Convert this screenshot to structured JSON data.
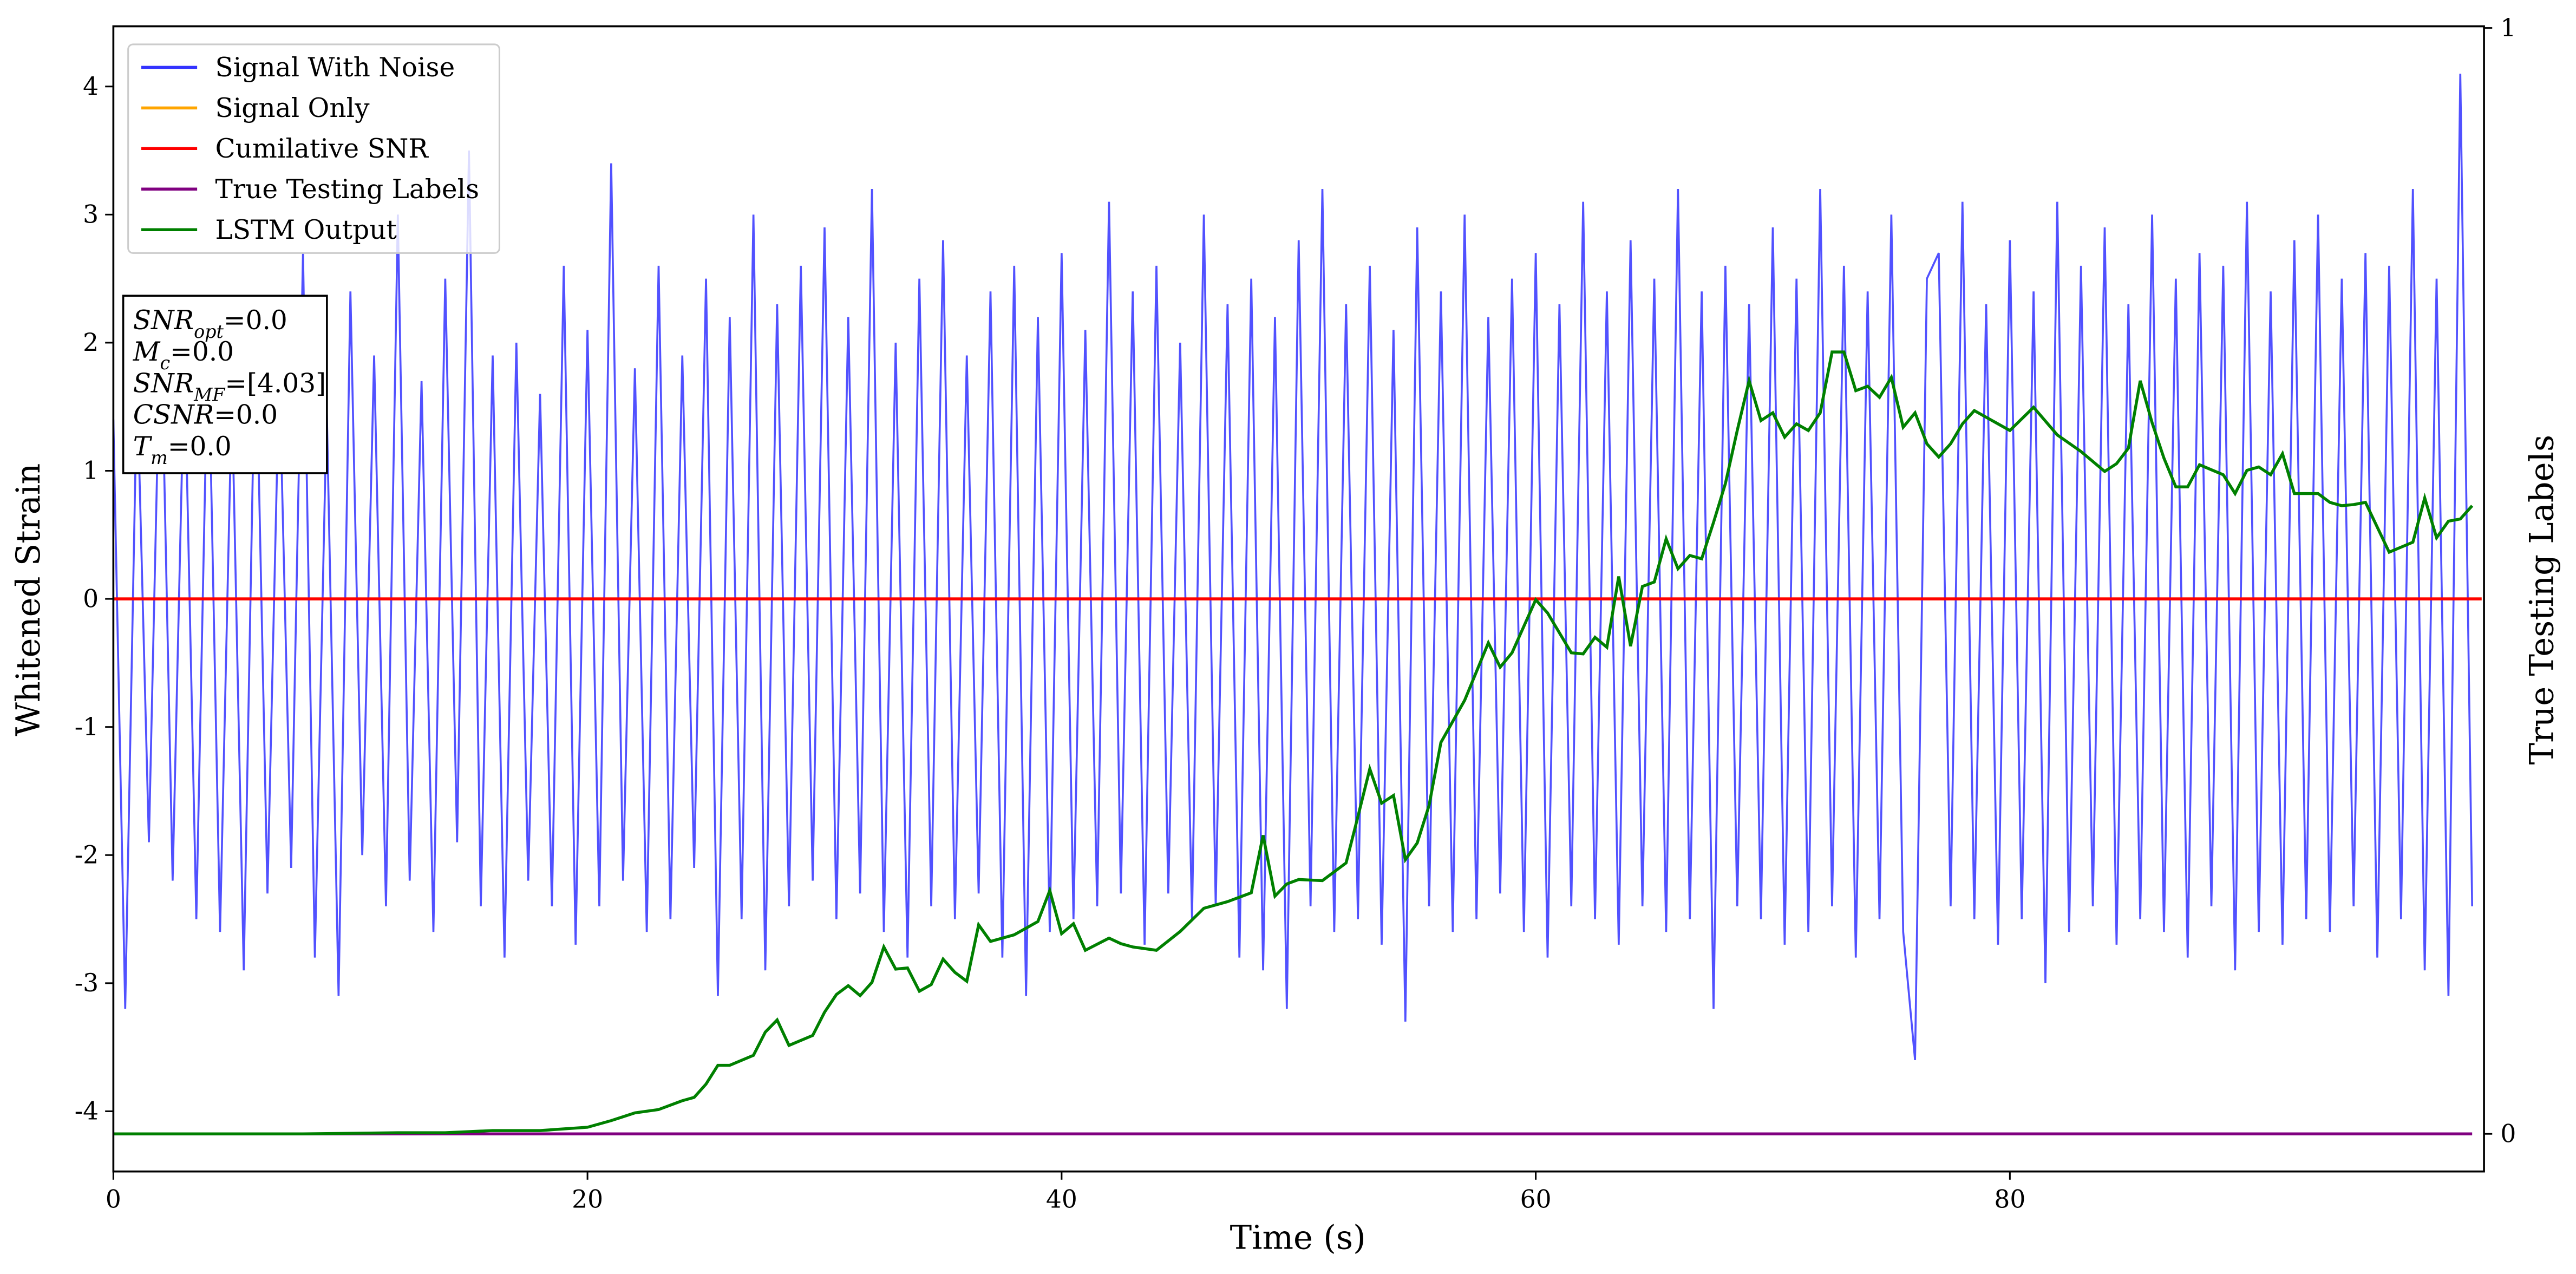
{
  "chart_data": {
    "type": "line",
    "x_label": "Time (s)",
    "y_label": "Whitened Strain",
    "y2_label": "True Testing Labels",
    "xlim": [
      0,
      100
    ],
    "xticks": [
      0,
      20,
      40,
      60,
      80
    ],
    "ylim": [
      -4.47,
      4.47
    ],
    "yticks": [
      -4,
      -3,
      -2,
      -1,
      0,
      1,
      2,
      3,
      4
    ],
    "y2lim": [
      -0.034,
      1.0015
    ],
    "y2ticks": [
      0,
      1
    ],
    "legend": "upper left",
    "annotation": [
      {
        "main": "SNR",
        "sub": "opt",
        "rest": "=0.0"
      },
      {
        "main": "M",
        "sub": "c",
        "rest": "=0.0"
      },
      {
        "main": "SNR",
        "sub": "MF",
        "rest": "=[4.03]"
      },
      {
        "main": "CSNR",
        "rest": "=0.0"
      },
      {
        "main": "T",
        "sub": "m",
        "rest": "=0.0"
      }
    ],
    "series": [
      {
        "name": "Signal With Noise",
        "color": "#3333ff",
        "x": [
          0,
          0.5,
          1,
          1.5,
          2,
          2.5,
          3,
          3.5,
          4,
          4.5,
          5,
          5.5,
          6,
          6.5,
          7,
          7.5,
          8,
          8.5,
          9,
          9.5,
          10,
          10.5,
          11,
          11.5,
          12,
          12.5,
          13,
          13.5,
          14,
          14.5,
          15,
          15.5,
          16,
          16.5,
          17,
          17.5,
          18,
          18.5,
          19,
          19.5,
          20,
          20.5,
          21,
          21.5,
          22,
          22.5,
          23,
          23.5,
          24,
          24.5,
          25,
          25.5,
          26,
          26.5,
          27,
          27.5,
          28,
          28.5,
          29,
          29.5,
          30,
          30.5,
          31,
          31.5,
          32,
          32.5,
          33,
          33.5,
          34,
          34.5,
          35,
          35.5,
          36,
          36.5,
          37,
          37.5,
          38,
          38.5,
          39,
          39.5,
          40,
          40.5,
          41,
          41.5,
          42,
          42.5,
          43,
          43.5,
          44,
          44.5,
          45,
          45.5,
          46,
          46.5,
          47,
          47.5,
          48,
          48.5,
          49,
          49.5,
          50,
          50.5,
          51,
          51.5,
          52,
          52.5,
          53,
          53.5,
          54,
          54.5,
          55,
          55.5,
          56,
          56.5,
          57,
          57.5,
          58,
          58.5,
          59,
          59.5,
          60,
          60.5,
          61,
          61.5,
          62,
          62.5,
          63,
          63.5,
          64,
          64.5,
          65,
          65.5,
          66,
          66.5,
          67,
          67.5,
          68,
          68.5,
          69,
          69.5,
          70,
          70.5,
          71,
          71.5,
          72,
          72.5,
          73,
          73.5,
          74,
          74.5,
          75,
          75.5,
          76,
          76.5,
          77,
          77.5,
          78,
          78.5,
          79,
          79.5,
          80,
          80.5,
          81,
          81.5,
          82,
          82.5,
          83,
          83.5,
          84,
          84.5,
          85,
          85.5,
          86,
          86.5,
          87,
          87.5,
          88,
          88.5,
          89,
          89.5,
          90,
          90.5,
          91,
          91.5,
          92,
          92.5,
          93,
          93.5,
          94,
          94.5,
          95,
          95.5,
          96,
          96.5,
          97,
          97.5,
          98,
          98.5,
          99,
          99.5
        ],
        "values": [
          1.4,
          -3.2,
          1.7,
          -1.9,
          2.3,
          -2.2,
          1.9,
          -2.5,
          2.1,
          -2.6,
          1.6,
          -2.9,
          2.2,
          -2.3,
          1.8,
          -2.1,
          2.7,
          -2.8,
          1.5,
          -3.1,
          2.4,
          -2.0,
          1.9,
          -2.4,
          3.0,
          -2.2,
          1.7,
          -2.6,
          2.5,
          -1.9,
          3.5,
          -2.4,
          1.9,
          -2.8,
          2.0,
          -2.2,
          1.6,
          -2.4,
          2.6,
          -2.7,
          2.1,
          -2.4,
          3.4,
          -2.2,
          1.8,
          -2.6,
          2.6,
          -2.5,
          1.9,
          -2.1,
          2.5,
          -3.1,
          2.2,
          -2.5,
          3.0,
          -2.9,
          2.3,
          -2.4,
          2.6,
          -2.2,
          2.9,
          -2.5,
          2.2,
          -2.3,
          3.2,
          -2.6,
          2.0,
          -2.8,
          2.5,
          -2.4,
          2.8,
          -2.5,
          1.9,
          -2.3,
          2.4,
          -2.8,
          2.6,
          -3.1,
          2.2,
          -2.6,
          2.7,
          -2.5,
          2.1,
          -2.4,
          3.1,
          -2.3,
          2.4,
          -2.7,
          2.6,
          -2.3,
          2.0,
          -2.5,
          3.0,
          -2.4,
          2.3,
          -2.8,
          2.5,
          -2.9,
          2.2,
          -3.2,
          2.8,
          -2.4,
          3.2,
          -2.6,
          2.3,
          -2.5,
          2.6,
          -2.7,
          2.1,
          -3.3,
          2.9,
          -2.4,
          2.4,
          -2.6,
          3.0,
          -2.5,
          2.2,
          -2.3,
          2.5,
          -2.6,
          2.7,
          -2.8,
          2.3,
          -2.4,
          3.1,
          -2.5,
          2.4,
          -2.7,
          2.8,
          -2.4,
          2.5,
          -2.6,
          3.2,
          -2.5,
          2.4,
          -3.2,
          2.6,
          -2.4,
          2.3,
          -2.5,
          2.9,
          -2.7,
          2.5,
          -2.6,
          3.2,
          -2.4,
          2.6,
          -2.8,
          2.4,
          -2.5,
          3.0,
          -2.6,
          -3.6,
          2.5,
          2.7,
          -2.4,
          3.1,
          -2.5,
          2.3,
          -2.7,
          2.8,
          -2.5,
          2.4,
          -3.0,
          3.1,
          -2.6,
          2.6,
          -2.4,
          2.9,
          -2.7,
          2.3,
          -2.5,
          3.0,
          -2.6,
          2.5,
          -2.8,
          2.7,
          -2.4,
          2.6,
          -2.9,
          3.1,
          -2.6,
          2.4,
          -2.7,
          2.8,
          -2.5,
          3.0,
          -2.6,
          2.5,
          -2.4,
          2.7,
          -2.8,
          2.6,
          -2.5,
          3.2,
          -2.9,
          2.5,
          -3.1,
          4.1,
          -2.4
        ]
      },
      {
        "name": "Signal Only",
        "color": "#ffa500",
        "x": [
          0,
          99.9
        ],
        "values": [
          0,
          0
        ]
      },
      {
        "name": "Cumilative SNR",
        "color": "#ff0000",
        "x": [
          0,
          99.9
        ],
        "values": [
          0,
          0
        ]
      },
      {
        "name": "True Testing Labels",
        "color": "#800080",
        "axis": "y2",
        "x": [
          0,
          99.5
        ],
        "values": [
          0,
          0
        ]
      },
      {
        "name": "LSTM Output",
        "color": "#008000",
        "axis": "y2",
        "x": [
          0,
          4,
          8,
          12,
          14,
          16,
          18,
          20,
          21,
          22,
          23,
          24,
          24.5,
          25,
          25.5,
          26,
          27,
          27.5,
          28,
          28.5,
          29.5,
          30,
          30.5,
          31,
          31.5,
          32,
          32.5,
          33,
          33.5,
          34,
          34.5,
          35,
          35.5,
          36,
          36.5,
          37,
          38,
          39,
          39.5,
          40,
          40.5,
          41,
          42,
          42.5,
          43,
          44,
          45,
          46,
          47,
          48,
          48.5,
          49,
          49.5,
          50,
          51,
          52,
          52.5,
          53,
          53.5,
          54,
          54.5,
          55,
          55.5,
          56,
          57,
          58,
          58.5,
          59,
          60,
          60.5,
          61,
          61.5,
          62,
          62.5,
          63,
          63.5,
          64,
          64.5,
          65,
          65.5,
          66,
          66.5,
          67,
          67.5,
          68,
          68.5,
          69,
          69.5,
          70,
          70.5,
          71,
          71.5,
          72,
          72.5,
          73,
          73.5,
          74,
          74.5,
          75,
          75.5,
          76,
          76.5,
          77,
          77.5,
          78,
          78.5,
          79,
          80,
          81,
          82,
          83,
          84,
          84.5,
          85,
          85.5,
          86,
          86.5,
          87,
          87.5,
          88,
          89,
          89.5,
          90,
          90.5,
          91,
          91.5,
          92,
          93,
          93.5,
          94,
          94.5,
          95,
          96,
          97,
          97.5,
          98,
          98.5,
          99,
          99.5
        ],
        "values": [
          0,
          0,
          0,
          0.001,
          0.001,
          0.003,
          0.003,
          0.006,
          0.012,
          0.019,
          0.022,
          0.03,
          0.033,
          0.045,
          0.062,
          0.062,
          0.071,
          0.092,
          0.103,
          0.08,
          0.089,
          0.11,
          0.126,
          0.134,
          0.125,
          0.137,
          0.169,
          0.149,
          0.15,
          0.129,
          0.135,
          0.158,
          0.146,
          0.138,
          0.189,
          0.174,
          0.18,
          0.192,
          0.22,
          0.181,
          0.19,
          0.166,
          0.177,
          0.172,
          0.169,
          0.166,
          0.183,
          0.204,
          0.21,
          0.218,
          0.27,
          0.215,
          0.226,
          0.23,
          0.229,
          0.245,
          0.287,
          0.33,
          0.299,
          0.306,
          0.248,
          0.263,
          0.297,
          0.354,
          0.392,
          0.444,
          0.422,
          0.435,
          0.483,
          0.471,
          0.453,
          0.435,
          0.434,
          0.449,
          0.44,
          0.504,
          0.441,
          0.495,
          0.499,
          0.538,
          0.511,
          0.523,
          0.52,
          0.553,
          0.588,
          0.636,
          0.681,
          0.645,
          0.652,
          0.63,
          0.642,
          0.636,
          0.652,
          0.707,
          0.707,
          0.672,
          0.676,
          0.666,
          0.684,
          0.639,
          0.652,
          0.624,
          0.612,
          0.624,
          0.642,
          0.654,
          0.648,
          0.636,
          0.657,
          0.632,
          0.617,
          0.599,
          0.606,
          0.62,
          0.681,
          0.643,
          0.611,
          0.585,
          0.585,
          0.605,
          0.596,
          0.579,
          0.6,
          0.603,
          0.596,
          0.615,
          0.579,
          0.579,
          0.571,
          0.568,
          0.569,
          0.571,
          0.526,
          0.535,
          0.575,
          0.539,
          0.554,
          0.556,
          0.568
        ]
      }
    ]
  }
}
